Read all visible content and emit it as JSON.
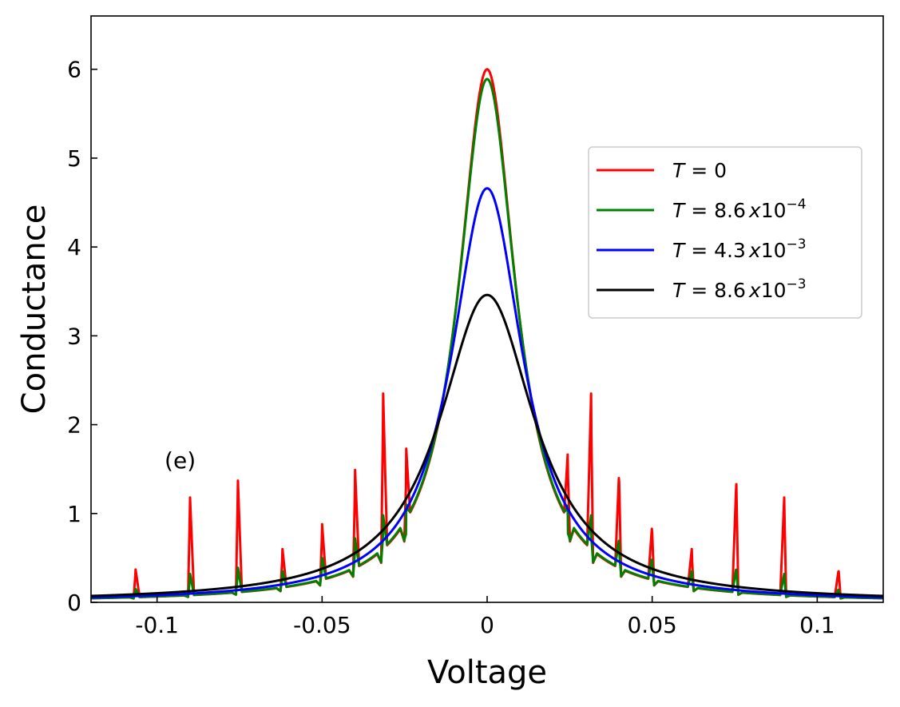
{
  "chart_data": {
    "type": "line",
    "title": "",
    "xlabel": "Voltage",
    "ylabel": "Conductance",
    "xlim": [
      -0.12,
      0.12
    ],
    "ylim": [
      0,
      6.6
    ],
    "xticks": [
      -0.1,
      -0.05,
      0,
      0.05,
      0.1
    ],
    "xtick_labels": [
      "-0.1",
      "-0.05",
      "0",
      "0.05",
      "0.1"
    ],
    "yticks": [
      0,
      1,
      2,
      3,
      4,
      5,
      6
    ],
    "ytick_labels": [
      "0",
      "1",
      "2",
      "3",
      "4",
      "5",
      "6"
    ],
    "annotation": {
      "text": "(e)",
      "x": -0.093,
      "y": 1.6
    },
    "legend_position": "upper-right",
    "series": [
      {
        "name": "T = 0",
        "legend": {
          "T": "T",
          "eq": " = ",
          "value": "0",
          "mult": "",
          "base": "",
          "exp": ""
        },
        "color": "#ff0000",
        "peak": 6.0,
        "width": 0.0105,
        "spikes": [
          {
            "x": 0.0245,
            "h": 1.73
          },
          {
            "x": 0.0315,
            "h": 2.35
          },
          {
            "x": 0.04,
            "h": 1.49
          },
          {
            "x": 0.05,
            "h": 0.88
          },
          {
            "x": 0.062,
            "h": 0.6
          },
          {
            "x": 0.0755,
            "h": 1.37
          },
          {
            "x": 0.09,
            "h": 1.18
          },
          {
            "x": 0.1065,
            "h": 0.37
          }
        ]
      },
      {
        "name": "T = 8.6 x 10^-4",
        "legend": {
          "T": "T",
          "eq": " = ",
          "value": "8.6",
          "mult": "x",
          "base": "10",
          "exp": "−4"
        },
        "color": "#008000",
        "peak": 5.89,
        "width": 0.0107,
        "spikes": [
          {
            "x": 0.0245,
            "h": 1.1
          },
          {
            "x": 0.0315,
            "h": 0.98
          },
          {
            "x": 0.04,
            "h": 0.72
          },
          {
            "x": 0.05,
            "h": 0.5
          },
          {
            "x": 0.062,
            "h": 0.35
          },
          {
            "x": 0.0755,
            "h": 0.39
          },
          {
            "x": 0.09,
            "h": 0.32
          },
          {
            "x": 0.1065,
            "h": 0.15
          }
        ]
      },
      {
        "name": "T = 4.3 x 10^-3",
        "legend": {
          "T": "T",
          "eq": " = ",
          "value": "4.3",
          "mult": "x",
          "base": "10",
          "exp": "−3"
        },
        "color": "#0000ff",
        "peak": 4.66,
        "width": 0.0132,
        "spikes": []
      },
      {
        "name": "T = 8.6 x 10^-3",
        "legend": {
          "T": "T",
          "eq": " = ",
          "value": "8.6",
          "mult": "x",
          "base": "10",
          "exp": "−3"
        },
        "color": "#000000",
        "peak": 3.46,
        "width": 0.0175,
        "spikes": []
      }
    ]
  }
}
